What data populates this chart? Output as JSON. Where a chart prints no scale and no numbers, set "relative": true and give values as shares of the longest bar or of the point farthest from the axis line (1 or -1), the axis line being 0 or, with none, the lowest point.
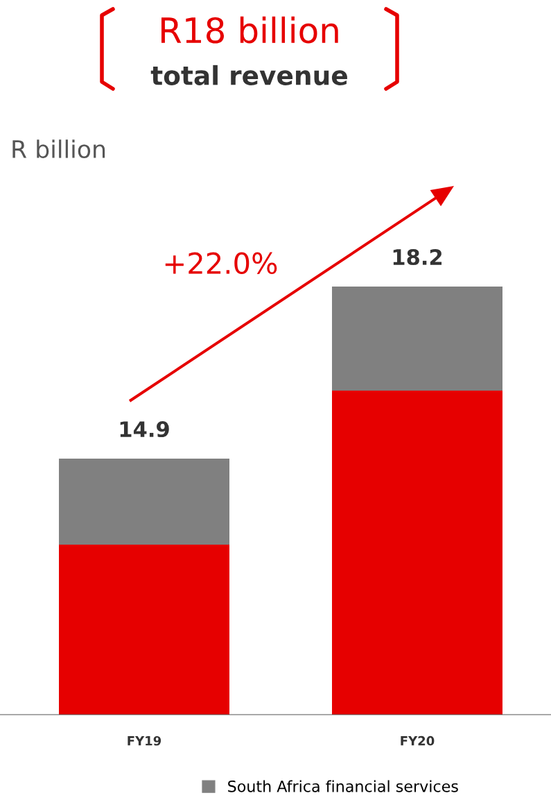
{
  "chart_data": {
    "type": "bar",
    "title": "R18 billion",
    "subtitle": "total revenue",
    "categories": [
      "FY19",
      "FY20"
    ],
    "stacked": true,
    "relative": true,
    "series": [
      {
        "color": "#e60000",
        "values": [
          0.397,
          0.757
        ]
      },
      {
        "name": "South Africa financial services",
        "color": "#808080",
        "values": [
          0.201,
          0.243
        ]
      }
    ],
    "annotations": [
      "R billion",
      "+22.0%",
      {
        "text": "14.9",
        "x": "FY19",
        "y": 0.598
      },
      {
        "text": "18.2",
        "x": "FY20",
        "y": 1
      }
    ],
    "legend": "bottom",
    "grid": false
  }
}
